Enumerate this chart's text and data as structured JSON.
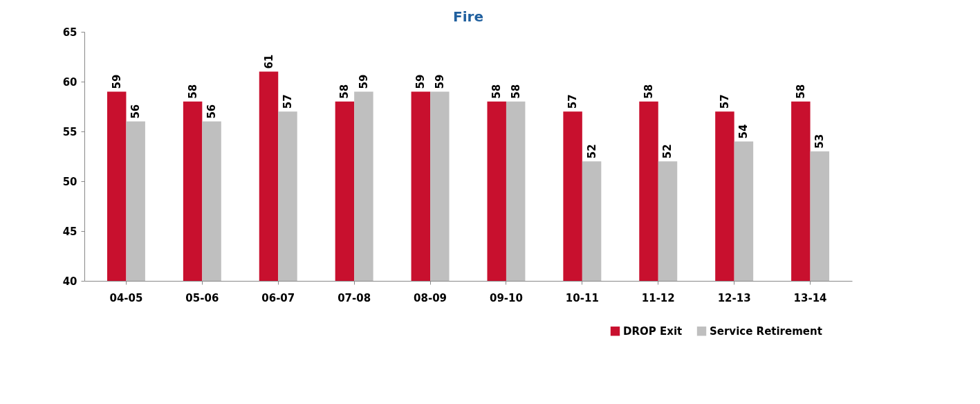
{
  "chart_data": {
    "type": "bar",
    "title": "Fire",
    "categories": [
      "04-05",
      "05-06",
      "06-07",
      "07-08",
      "08-09",
      "09-10",
      "10-11",
      "11-12",
      "12-13",
      "13-14"
    ],
    "series": [
      {
        "name": "DROP Exit",
        "color": "#c8102e",
        "values": [
          59,
          58,
          61,
          58,
          59,
          58,
          57,
          58,
          57,
          58
        ]
      },
      {
        "name": "Service Retirement",
        "color": "#bfbfbf",
        "values": [
          56,
          56,
          57,
          59,
          59,
          58,
          52,
          52,
          54,
          53
        ]
      }
    ],
    "ylim": [
      40,
      65
    ],
    "yticks": [
      40,
      45,
      50,
      55,
      60,
      65
    ],
    "grid": false,
    "legend": "bottom right",
    "data_labels": true
  }
}
